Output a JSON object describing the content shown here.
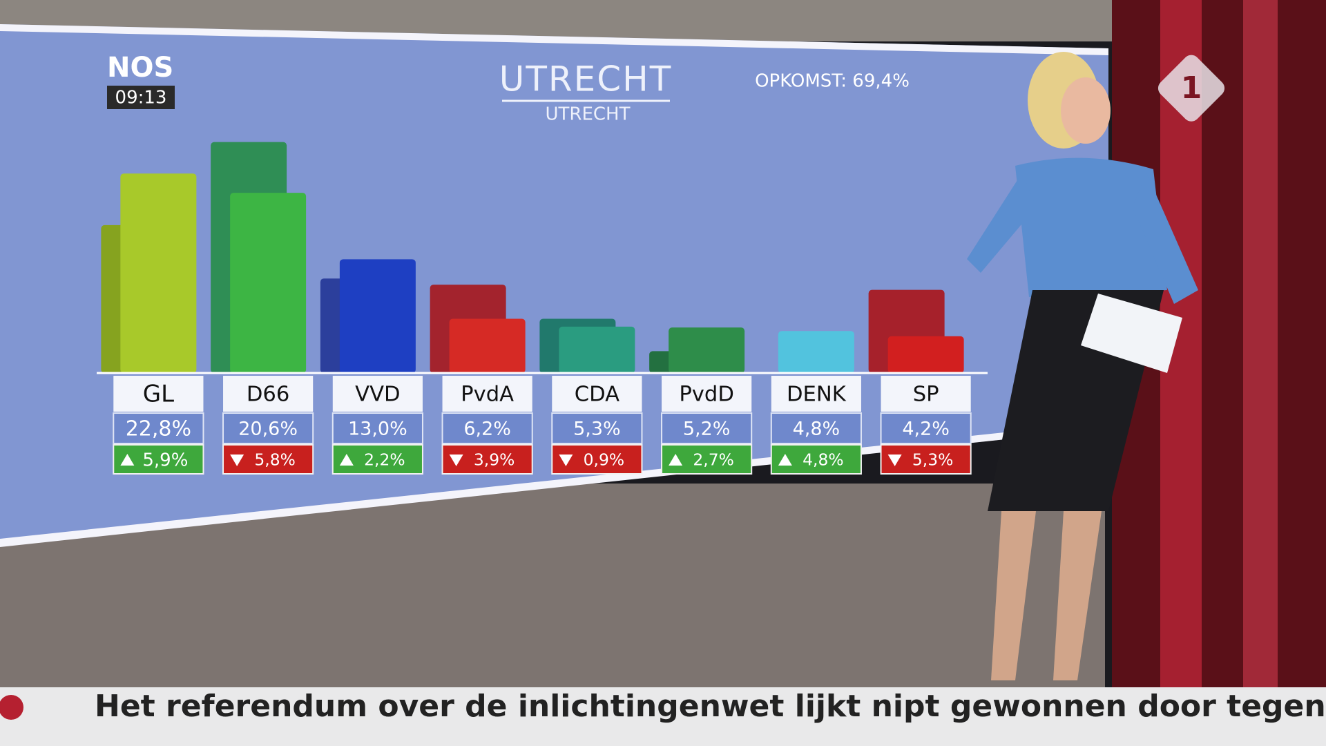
{
  "broadcast": {
    "logo": "NOS",
    "time": "09:13",
    "channel": "1",
    "ticker": "Het referendum over de inlichtingenwet lijkt nipt gewonnen door tegenstan"
  },
  "chart_data": {
    "type": "bar",
    "title": "UTRECHT",
    "subtitle": "UTRECHT",
    "annotation": "OPKOMST: 69,4%",
    "categories": [
      "GL",
      "D66",
      "VVD",
      "PvdA",
      "CDA",
      "PvdD",
      "DENK",
      "SP"
    ],
    "values": [
      22.8,
      20.6,
      13.0,
      6.2,
      5.3,
      5.2,
      4.8,
      4.2
    ],
    "value_labels": [
      "22,8%",
      "20,6%",
      "13,0%",
      "6,2%",
      "5,3%",
      "5,2%",
      "4,8%",
      "4,2%"
    ],
    "changes": [
      5.9,
      -5.8,
      2.2,
      -3.9,
      -0.9,
      2.7,
      4.8,
      -5.3
    ],
    "change_labels": [
      "5,9%",
      "5,8%",
      "2,2%",
      "3,9%",
      "0,9%",
      "2,7%",
      "4,8%",
      "5,3%"
    ],
    "colors": [
      "#a8c92a",
      "#3db544",
      "#1e3fc2",
      "#d62a25",
      "#2a9c80",
      "#2e8d4a",
      "#52c3de",
      "#d21f1f"
    ],
    "back_colors": [
      "#86a31f",
      "#2f8e55",
      "#2c3f9c",
      "#a3232d",
      "#21796c",
      "#237040",
      "#3aa0bc",
      "#a6212b"
    ],
    "ylim": [
      0,
      30
    ]
  }
}
